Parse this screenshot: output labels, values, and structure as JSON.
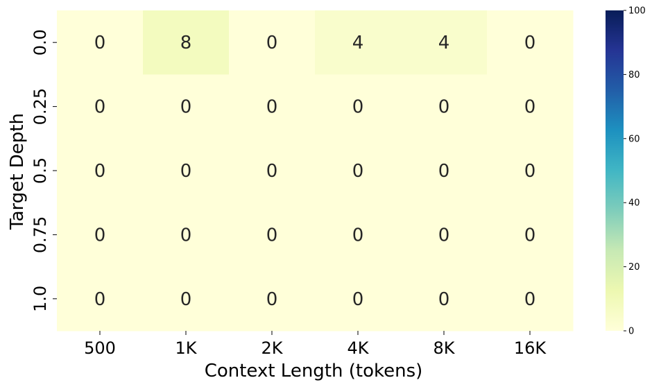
{
  "chart_data": {
    "type": "heatmap",
    "title": "",
    "xlabel": "Context Length (tokens)",
    "ylabel": "Target Depth",
    "x_categories": [
      "500",
      "1K",
      "2K",
      "4K",
      "8K",
      "16K"
    ],
    "y_categories": [
      "0.0",
      "0.25",
      "0.5",
      "0.75",
      "1.0"
    ],
    "values": [
      [
        0,
        8,
        0,
        4,
        4,
        0
      ],
      [
        0,
        0,
        0,
        0,
        0,
        0
      ],
      [
        0,
        0,
        0,
        0,
        0,
        0
      ],
      [
        0,
        0,
        0,
        0,
        0,
        0
      ],
      [
        0,
        0,
        0,
        0,
        0,
        0
      ]
    ],
    "colorbar": {
      "range": [
        0,
        100
      ],
      "ticks": [
        "0",
        "20",
        "40",
        "60",
        "80",
        "100"
      ],
      "colormap": "YlGnBu"
    }
  }
}
